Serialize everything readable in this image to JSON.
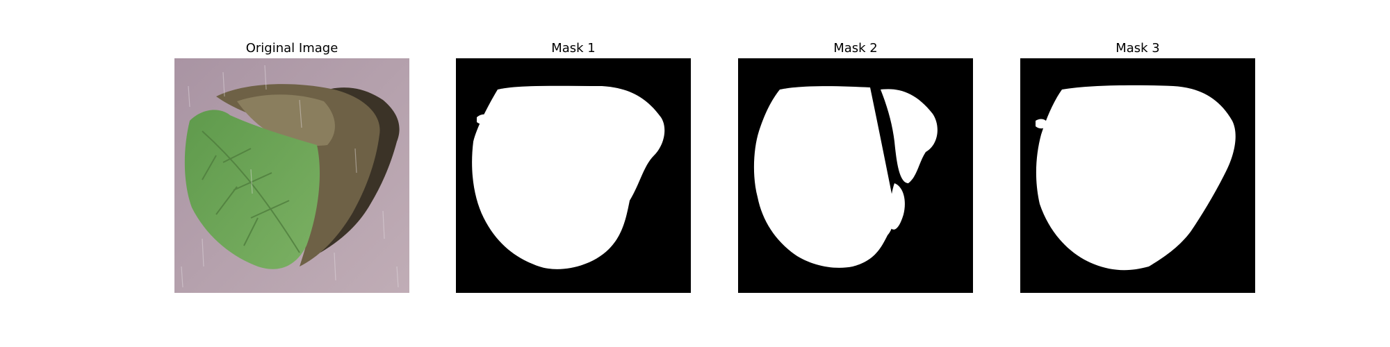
{
  "figure": {
    "panels": [
      {
        "id": "original",
        "title": "Original Image",
        "kind": "photo",
        "subject": "leaf-on-pink-background"
      },
      {
        "id": "mask1",
        "title": "Mask 1",
        "kind": "binary-mask"
      },
      {
        "id": "mask2",
        "title": "Mask 2",
        "kind": "binary-mask"
      },
      {
        "id": "mask3",
        "title": "Mask 3",
        "kind": "binary-mask"
      }
    ]
  },
  "colors": {
    "background": "#ffffff",
    "mask_background": "#000000",
    "mask_foreground": "#ffffff",
    "photo_backdrop": "#b29ca7",
    "leaf_green": "#74a85a",
    "leaf_brown": "#6e6146"
  }
}
